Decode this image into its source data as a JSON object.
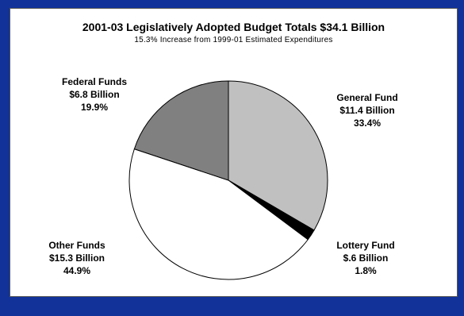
{
  "chart_data": {
    "type": "pie",
    "title": "2001-03 Legislatively Adopted Budget Totals $34.1 Billion",
    "subtitle": "15.3% Increase from 1999-01 Estimated Expenditures",
    "slices": [
      {
        "name": "General Fund",
        "amount": "$11.4 Billion",
        "percent_label": "33.4%",
        "value": 33.4,
        "color": "#c0c0c0"
      },
      {
        "name": "Lottery Fund",
        "amount": "$.6 Billion",
        "percent_label": "1.8%",
        "value": 1.8,
        "color": "#000000"
      },
      {
        "name": "Other Funds",
        "amount": "$15.3 Billion",
        "percent_label": "44.9%",
        "value": 44.9,
        "color": "#ffffff"
      },
      {
        "name": "Federal Funds",
        "amount": "$6.8 Billion",
        "percent_label": "19.9%",
        "value": 19.9,
        "color": "#808080"
      }
    ]
  }
}
